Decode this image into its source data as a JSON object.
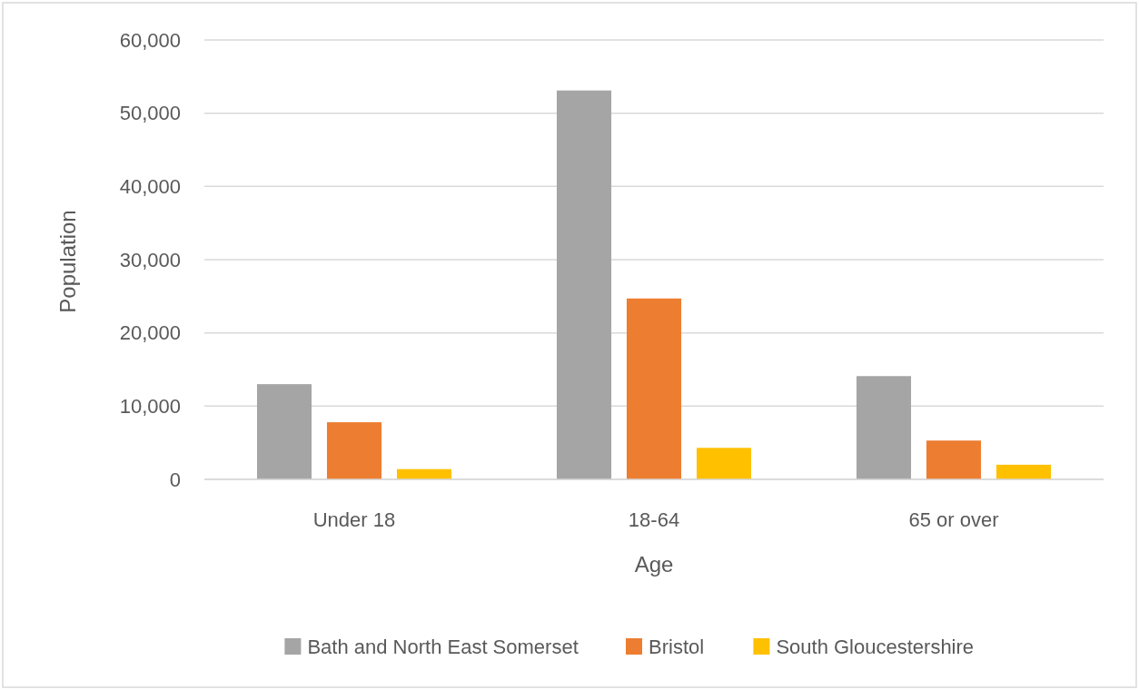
{
  "chart_data": {
    "type": "bar",
    "xlabel": "Age",
    "ylabel": "Population",
    "categories": [
      "Under 18",
      "18-64",
      "65 or over"
    ],
    "series": [
      {
        "name": "Bath and North East Somerset",
        "color": "#a5a5a5",
        "values": [
          13000,
          53100,
          14100
        ]
      },
      {
        "name": "Bristol",
        "color": "#ed7d31",
        "values": [
          7800,
          24700,
          5300
        ]
      },
      {
        "name": "South Gloucestershire",
        "color": "#ffc000",
        "values": [
          1400,
          4300,
          2000
        ]
      }
    ],
    "ylim": [
      0,
      60000
    ],
    "yticks": [
      {
        "value": 0,
        "label": "0"
      },
      {
        "value": 10000,
        "label": "10,000"
      },
      {
        "value": 20000,
        "label": "20,000"
      },
      {
        "value": 30000,
        "label": "30,000"
      },
      {
        "value": 40000,
        "label": "40,000"
      },
      {
        "value": 50000,
        "label": "50,000"
      },
      {
        "value": 60000,
        "label": "60,000"
      }
    ],
    "grid": "y",
    "legend": "bottom"
  }
}
